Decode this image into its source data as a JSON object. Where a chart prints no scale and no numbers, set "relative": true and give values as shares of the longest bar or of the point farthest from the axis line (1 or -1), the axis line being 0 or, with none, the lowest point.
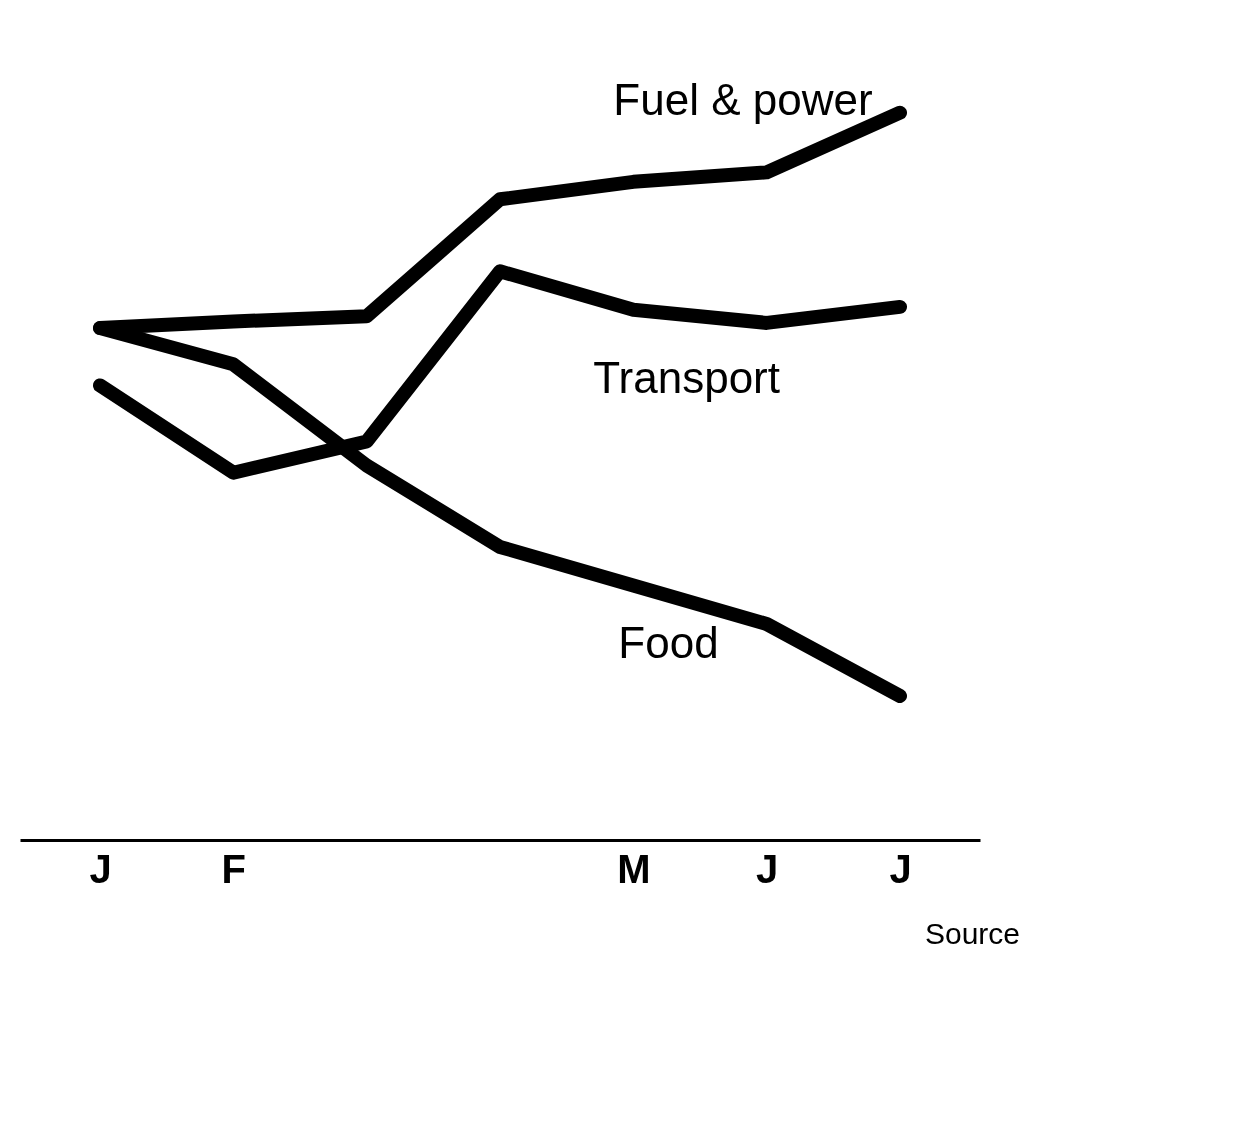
{
  "chart_data": {
    "type": "line",
    "relative": true,
    "categories": [
      "J",
      "F",
      null,
      null,
      "M",
      "J",
      "J"
    ],
    "series": [
      {
        "name": "Fuel & power",
        "color": "#000000",
        "values": [
          0.704,
          0.713,
          0.72,
          0.881,
          0.905,
          0.918,
          1
        ]
      },
      {
        "name": "Transport",
        "color": "#000000",
        "values": [
          0.625,
          0.505,
          0.548,
          0.782,
          0.729,
          0.711,
          0.733
        ]
      },
      {
        "name": "Food",
        "color": "#000000",
        "values": [
          0.704,
          0.654,
          0.515,
          0.403,
          0.35,
          0.297,
          0.198
        ]
      }
    ],
    "annotations": [
      "Source"
    ],
    "grid": false,
    "legend": false,
    "marker": "none",
    "line_style": "solid"
  }
}
